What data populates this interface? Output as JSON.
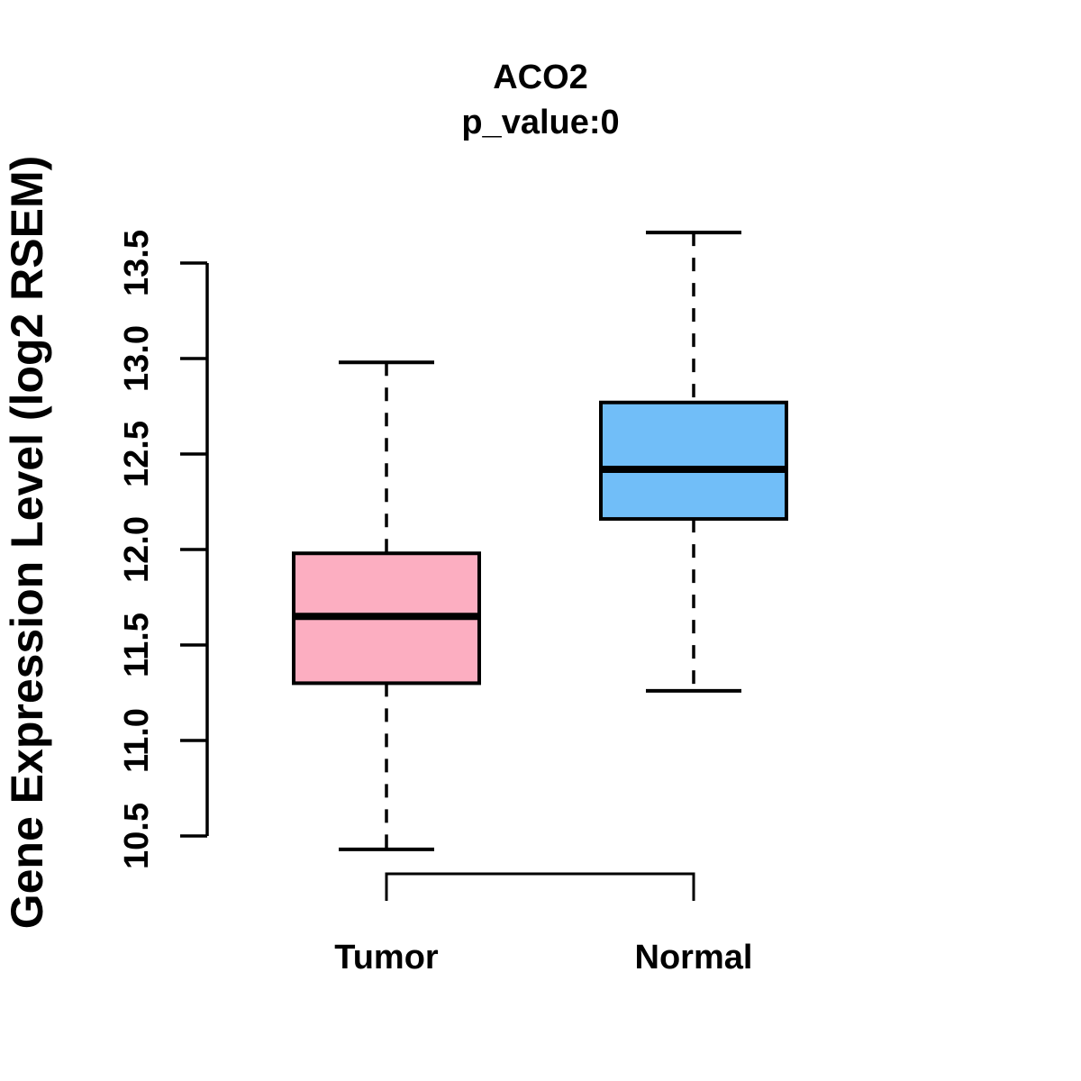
{
  "figure": {
    "background": "#FFFFFF",
    "text_color": "#000000"
  },
  "chart_data": {
    "type": "boxplot",
    "title": "ACO2",
    "subtitle": "p_value:0",
    "ylabel": "Gene Expression Level (log2 RSEM)",
    "xlabel": "",
    "ylim": [
      10.5,
      13.5
    ],
    "yticks": [
      "10.5",
      "11.0",
      "11.5",
      "12.0",
      "12.5",
      "13.0",
      "13.5"
    ],
    "grid": false,
    "legend_position": "none",
    "categories": [
      "Tumor",
      "Normal"
    ],
    "series": [
      {
        "name": "Tumor",
        "box_color": "#FCAEC1",
        "whisker_low": 10.43,
        "q1": 11.3,
        "median": 11.65,
        "q3": 11.98,
        "whisker_high": 12.98
      },
      {
        "name": "Normal",
        "box_color": "#71BEF8",
        "whisker_low": 11.26,
        "q1": 12.16,
        "median": 12.42,
        "q3": 12.77,
        "whisker_high": 13.66
      }
    ]
  }
}
